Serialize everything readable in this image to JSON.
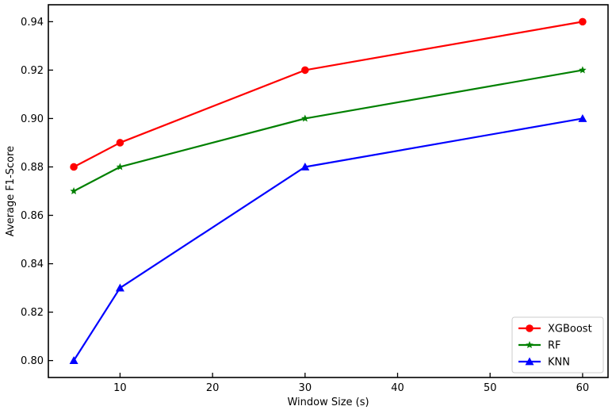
{
  "chart_data": {
    "type": "line",
    "title": "",
    "xlabel": "Window Size (s)",
    "ylabel": "Average F1-Score",
    "x": [
      5,
      10,
      30,
      60
    ],
    "xlim": [
      2.25,
      62.75
    ],
    "ylim": [
      0.793,
      0.947
    ],
    "xticks": [
      10,
      20,
      30,
      40,
      50,
      60
    ],
    "yticks": [
      0.8,
      0.82,
      0.84,
      0.86,
      0.88,
      0.9,
      0.92,
      0.94
    ],
    "xtick_labels": [
      "10",
      "20",
      "30",
      "40",
      "50",
      "60"
    ],
    "ytick_labels": [
      "0.80",
      "0.82",
      "0.84",
      "0.86",
      "0.88",
      "0.90",
      "0.92",
      "0.94"
    ],
    "grid": false,
    "legend_position": "lower-right",
    "series": [
      {
        "name": "XGBoost",
        "color": "#ff0000",
        "marker": "circle",
        "values": [
          0.88,
          0.89,
          0.92,
          0.94
        ]
      },
      {
        "name": "RF",
        "color": "#008000",
        "marker": "star",
        "values": [
          0.87,
          0.88,
          0.9,
          0.92
        ]
      },
      {
        "name": "KNN",
        "color": "#0000ff",
        "marker": "triangle",
        "values": [
          0.8,
          0.83,
          0.88,
          0.9
        ]
      }
    ]
  }
}
